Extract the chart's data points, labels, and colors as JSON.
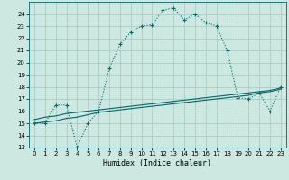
{
  "xlabel": "Humidex (Indice chaleur)",
  "background_color": "#cce8e0",
  "grid_color": "#aaccc4",
  "line_color": "#006868",
  "xlim": [
    -0.5,
    23.5
  ],
  "ylim": [
    13,
    25
  ],
  "yticks": [
    13,
    14,
    15,
    16,
    17,
    18,
    19,
    20,
    21,
    22,
    23,
    24
  ],
  "xticks": [
    0,
    1,
    2,
    3,
    4,
    5,
    6,
    7,
    8,
    9,
    10,
    11,
    12,
    13,
    14,
    15,
    16,
    17,
    18,
    19,
    20,
    21,
    22,
    23
  ],
  "main_y": [
    15,
    15,
    16.5,
    16.5,
    13,
    15,
    16,
    19.5,
    21.5,
    22.5,
    23,
    23.1,
    24.3,
    24.5,
    23.5,
    24,
    23.3,
    23,
    21,
    17.1,
    17,
    17.5,
    16,
    18
  ],
  "flat1_y": [
    15,
    15.1,
    15.2,
    15.4,
    15.5,
    15.7,
    15.9,
    16.0,
    16.1,
    16.2,
    16.3,
    16.4,
    16.5,
    16.6,
    16.7,
    16.8,
    16.9,
    17.0,
    17.1,
    17.2,
    17.3,
    17.5,
    17.6,
    17.8
  ],
  "flat2_y": [
    15.3,
    15.5,
    15.6,
    15.8,
    15.9,
    16.0,
    16.1,
    16.2,
    16.3,
    16.4,
    16.5,
    16.6,
    16.7,
    16.8,
    16.9,
    17.0,
    17.1,
    17.2,
    17.3,
    17.4,
    17.5,
    17.6,
    17.7,
    17.9
  ]
}
